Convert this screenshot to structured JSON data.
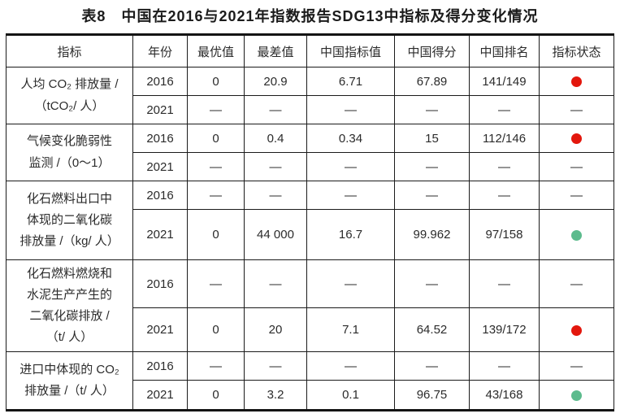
{
  "title": "表8　中国在2016与2021年指数报告SDG13中指标及得分变化情况",
  "colors": {
    "red_dot": "#e3170d",
    "green_dot": "#5cbb8d",
    "dash_gray": "#8f8f8f",
    "border": "#1b1b1b",
    "text": "#2b2b2b"
  },
  "table": {
    "columns": [
      "指标",
      "年份",
      "最优值",
      "最差值",
      "中国指标值",
      "中国得分",
      "中国排名",
      "指标状态"
    ],
    "status_legend": {
      "red": "red-dot-icon",
      "green": "green-dot-icon",
      "dash": "em-dash"
    },
    "groups": [
      {
        "indicator_lines": [
          "人均 CO₂ 排放量 /",
          "（tCO₂/ 人）"
        ],
        "rows": [
          {
            "year": "2016",
            "values": [
              "0",
              "20.9",
              "6.71",
              "67.89",
              "141/149"
            ],
            "status": "red"
          },
          {
            "year": "2021",
            "values": [
              "—",
              "—",
              "—",
              "—",
              "—"
            ],
            "status": "dash"
          }
        ]
      },
      {
        "indicator_lines": [
          "气候变化脆弱性",
          "监测 /（0～1）"
        ],
        "rows": [
          {
            "year": "2016",
            "values": [
              "0",
              "0.4",
              "0.34",
              "15",
              "112/146"
            ],
            "status": "red"
          },
          {
            "year": "2021",
            "values": [
              "—",
              "—",
              "—",
              "—",
              "—"
            ],
            "status": "dash"
          }
        ]
      },
      {
        "indicator_lines": [
          "化石燃料出口中",
          "体现的二氧化碳",
          "排放量 /（kg/ 人）"
        ],
        "rows": [
          {
            "year": "2016",
            "values": [
              "—",
              "—",
              "—",
              "—",
              "—"
            ],
            "status": "dash"
          },
          {
            "year": "2021",
            "values": [
              "0",
              "44 000",
              "16.7",
              "99.962",
              "97/158"
            ],
            "status": "green"
          }
        ]
      },
      {
        "indicator_lines": [
          "化石燃料燃烧和",
          "水泥生产产生的",
          "二氧化碳排放 /",
          "（t/ 人）"
        ],
        "rows": [
          {
            "year": "2016",
            "values": [
              "—",
              "—",
              "—",
              "—",
              "—"
            ],
            "status": "dash"
          },
          {
            "year": "2021",
            "values": [
              "0",
              "20",
              "7.1",
              "64.52",
              "139/172"
            ],
            "status": "red"
          }
        ]
      },
      {
        "indicator_lines": [
          "进口中体现的 CO₂",
          "排放量 /（t/ 人）"
        ],
        "rows": [
          {
            "year": "2016",
            "values": [
              "—",
              "—",
              "—",
              "—",
              "—"
            ],
            "status": "dash"
          },
          {
            "year": "2021",
            "values": [
              "0",
              "3.2",
              "0.1",
              "96.75",
              "43/168"
            ],
            "status": "green"
          }
        ]
      }
    ]
  }
}
